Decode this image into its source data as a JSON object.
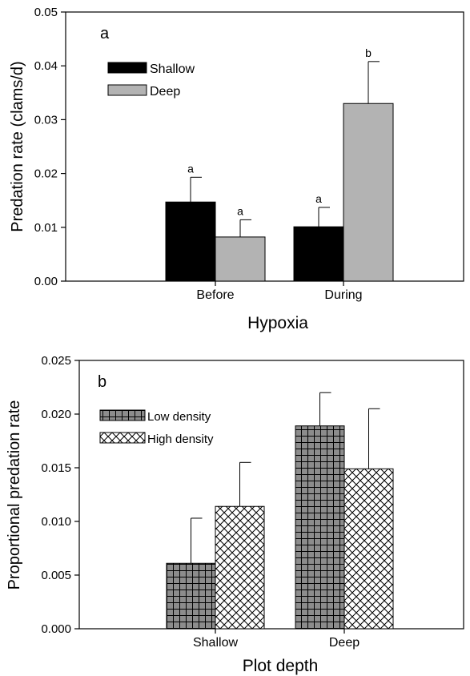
{
  "chart_data": [
    {
      "type": "bar",
      "panel_label": "a",
      "categories": [
        "Before",
        "During"
      ],
      "series": [
        {
          "name": "Shallow",
          "values": [
            0.0147,
            0.0101
          ],
          "errors": [
            0.0046,
            0.0036
          ],
          "letters": [
            "a",
            "a"
          ],
          "color": "#000000"
        },
        {
          "name": "Deep",
          "values": [
            0.0082,
            0.033
          ],
          "errors": [
            0.0032,
            0.0078
          ],
          "letters": [
            "a",
            "b"
          ],
          "color": "#b3b3b3"
        }
      ],
      "xlabel": "Hypoxia",
      "ylabel": "Predation rate (clams/d)",
      "ylim": [
        0,
        0.05
      ],
      "yticks": [
        "0.00",
        "0.01",
        "0.02",
        "0.03",
        "0.04",
        "0.05"
      ],
      "legend_position": "top-left",
      "grid": false
    },
    {
      "type": "bar",
      "panel_label": "b",
      "categories": [
        "Shallow",
        "Deep"
      ],
      "series": [
        {
          "name": "Low density",
          "values": [
            0.0061,
            0.0189
          ],
          "errors": [
            0.0042,
            0.0031
          ],
          "pattern": "grid",
          "color": "#8c8c8c"
        },
        {
          "name": "High density",
          "values": [
            0.0114,
            0.0149
          ],
          "errors": [
            0.0041,
            0.0056
          ],
          "pattern": "crosshatch",
          "color": "#ffffff"
        }
      ],
      "xlabel": "Plot depth",
      "ylabel": "Proportional predation rate",
      "ylim": [
        0,
        0.025
      ],
      "yticks": [
        "0.000",
        "0.005",
        "0.010",
        "0.015",
        "0.020",
        "0.025"
      ],
      "legend_position": "top-left",
      "grid": false
    }
  ]
}
